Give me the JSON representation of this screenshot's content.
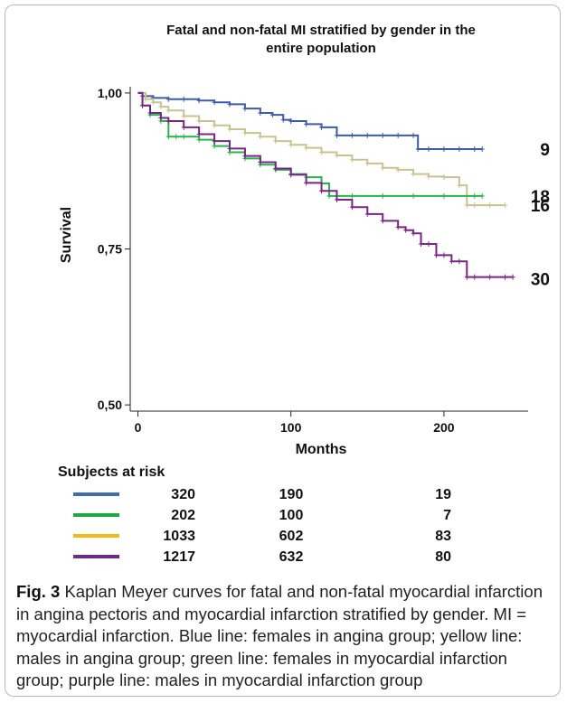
{
  "chart_data": {
    "type": "line",
    "title_line1": "Fatal and non-fatal MI stratified by gender in the",
    "title_line2": "entire population",
    "xlabel": "Months",
    "ylabel": "Survival",
    "xlim": [
      -5,
      255
    ],
    "ylim": [
      0.49,
      1.01
    ],
    "x_ticks": [
      0,
      100,
      200
    ],
    "x_tick_labels": [
      "0",
      "100",
      "200"
    ],
    "y_ticks": [
      0.5,
      0.75,
      1.0
    ],
    "y_tick_labels": [
      "0,50",
      "0,75",
      "1,00"
    ],
    "series": [
      {
        "color": "#3d5bab",
        "end_label": "9",
        "x": [
          0,
          3,
          10,
          20,
          30,
          40,
          50,
          60,
          70,
          80,
          88,
          95,
          100,
          110,
          120,
          130,
          140,
          150,
          160,
          170,
          180,
          183,
          190,
          200,
          210,
          220,
          225
        ],
        "y": [
          1.0,
          0.995,
          0.992,
          0.99,
          0.99,
          0.988,
          0.985,
          0.982,
          0.975,
          0.968,
          0.965,
          0.957,
          0.955,
          0.95,
          0.945,
          0.932,
          0.932,
          0.932,
          0.932,
          0.932,
          0.932,
          0.91,
          0.91,
          0.91,
          0.91,
          0.91,
          0.91
        ]
      },
      {
        "color": "#c8c38e",
        "end_label": "16",
        "x": [
          0,
          5,
          10,
          15,
          20,
          30,
          40,
          50,
          60,
          70,
          80,
          90,
          100,
          110,
          120,
          130,
          140,
          150,
          160,
          170,
          180,
          190,
          200,
          210,
          215,
          220,
          230,
          240
        ],
        "y": [
          1.0,
          0.99,
          0.985,
          0.978,
          0.972,
          0.963,
          0.955,
          0.948,
          0.942,
          0.936,
          0.93,
          0.923,
          0.917,
          0.912,
          0.905,
          0.9,
          0.893,
          0.887,
          0.88,
          0.877,
          0.87,
          0.866,
          0.865,
          0.852,
          0.82,
          0.82,
          0.82,
          0.82
        ]
      },
      {
        "color": "#28b44a",
        "end_label": "18",
        "x": [
          0,
          3,
          8,
          15,
          20,
          25,
          30,
          40,
          50,
          60,
          70,
          80,
          90,
          100,
          110,
          120,
          125,
          140,
          160,
          180,
          200,
          220,
          225
        ],
        "y": [
          1.0,
          0.98,
          0.965,
          0.955,
          0.93,
          0.93,
          0.93,
          0.925,
          0.915,
          0.905,
          0.895,
          0.885,
          0.877,
          0.87,
          0.865,
          0.855,
          0.835,
          0.835,
          0.835,
          0.835,
          0.835,
          0.835,
          0.835
        ]
      },
      {
        "color": "#7a2485",
        "end_label": "30",
        "x": [
          0,
          3,
          8,
          15,
          20,
          30,
          40,
          50,
          60,
          70,
          80,
          90,
          100,
          110,
          120,
          130,
          140,
          150,
          160,
          170,
          175,
          180,
          185,
          190,
          195,
          200,
          205,
          210,
          215,
          220,
          230,
          240,
          245
        ],
        "y": [
          1.0,
          0.98,
          0.968,
          0.96,
          0.955,
          0.945,
          0.934,
          0.923,
          0.911,
          0.899,
          0.889,
          0.879,
          0.869,
          0.856,
          0.843,
          0.829,
          0.817,
          0.806,
          0.795,
          0.785,
          0.78,
          0.775,
          0.758,
          0.758,
          0.74,
          0.74,
          0.73,
          0.73,
          0.705,
          0.705,
          0.705,
          0.705,
          0.705
        ]
      }
    ]
  },
  "risk_table": {
    "title": "Subjects at risk",
    "rows": [
      {
        "color": "#3d6cb5",
        "values": [
          "320",
          "190",
          "19"
        ]
      },
      {
        "color": "#1fa940",
        "values": [
          "202",
          "100",
          "7"
        ]
      },
      {
        "color": "#f7b716",
        "values": [
          "1033",
          "602",
          "83"
        ]
      },
      {
        "color": "#6d2b8c",
        "values": [
          "1217",
          "632",
          "80"
        ]
      }
    ]
  },
  "caption": {
    "label": "Fig. 3",
    "text": " Kaplan Meyer curves for fatal and non-fatal myocardial infarction in angina pectoris and myocardial infarction stratified by gender. MI = myocardial infarction. Blue line: females in angina group; yellow line: males in angina group; green line: females in myocardial infarction group; purple line: males in myocardial infarction group"
  }
}
